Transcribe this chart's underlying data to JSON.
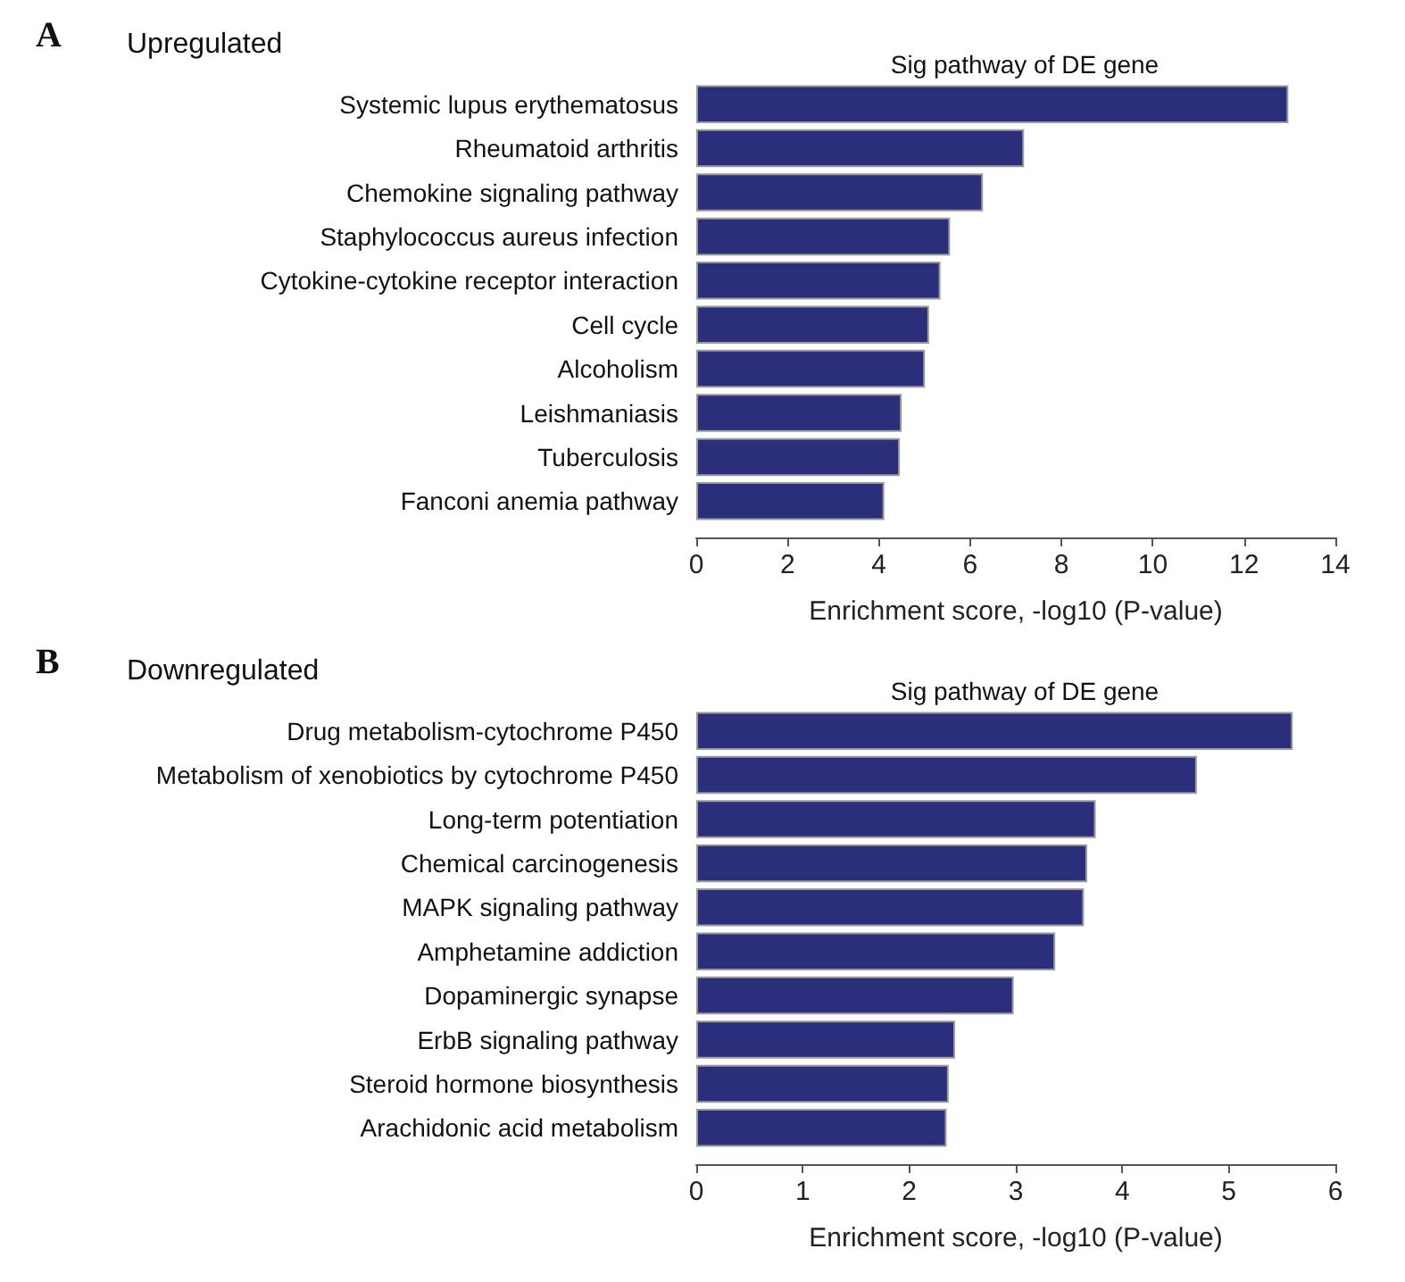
{
  "chart_data": [
    {
      "type": "bar",
      "orientation": "horizontal",
      "title": "Upregulated",
      "subtitle": "Sig pathway of DE gene",
      "xlabel": "Enrichment score, -log10 (P-value)",
      "annotations": [
        "A"
      ],
      "categories": [
        "Systemic lupus erythematosus",
        "Rheumatoid arthritis",
        "Chemokine signaling pathway",
        "Staphylococcus aureus infection",
        "Cytokine-cytokine receptor interaction",
        "Cell cycle",
        "Alcoholism",
        "Leishmaniasis",
        "Tuberculosis",
        "Fanconi anemia pathway"
      ],
      "values": [
        12.97,
        7.18,
        6.28,
        5.56,
        5.35,
        5.1,
        5.01,
        4.5,
        4.46,
        4.12
      ],
      "color": "#2b2e7b",
      "xlim": [
        0,
        14
      ],
      "xticks": [
        0,
        2,
        4,
        6,
        8,
        10,
        12,
        14
      ],
      "grid": false
    },
    {
      "type": "bar",
      "orientation": "horizontal",
      "title": "Downregulated",
      "subtitle": "Sig pathway of DE gene",
      "xlabel": "Enrichment score, -log10 (P-value)",
      "annotations": [
        "B"
      ],
      "categories": [
        "Drug metabolism-cytochrome P450",
        "Metabolism of xenobiotics by cytochrome P450",
        "Long-term potentiation",
        "Chemical carcinogenesis",
        "MAPK signaling pathway",
        "Amphetamine addiction",
        "Dopaminergic synapse",
        "ErbB signaling pathway",
        "Steroid hormone biosynthesis",
        "Arachidonic acid metabolism"
      ],
      "values": [
        5.6,
        4.7,
        3.75,
        3.67,
        3.64,
        3.37,
        2.98,
        2.43,
        2.37,
        2.35
      ],
      "color": "#2b2e7b",
      "xlim": [
        0,
        6
      ],
      "xticks": [
        0,
        1,
        2,
        3,
        4,
        5,
        6
      ],
      "grid": false
    }
  ]
}
